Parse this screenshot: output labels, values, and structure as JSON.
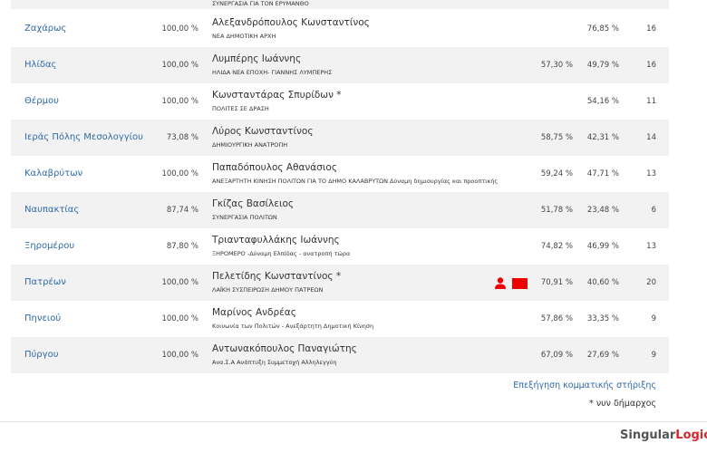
{
  "table": {
    "partial_row_party": "ΣΥΝΕΡΓΑΣΙΑ ΓΙΑ ΤΟΝ ΕΡΥΜΑΝΘΟ",
    "rows": [
      {
        "municipality": "Ζαχάρως",
        "counted": "100,00 %",
        "candidate": "Αλεξανδρόπουλος Κωνσταντίνος",
        "party": "ΝΕΑ ΔΗΜΟΤΙΚΗ ΑΡΧΗ",
        "second": "76,85 %",
        "seats": "16"
      },
      {
        "municipality": "Ηλίδας",
        "counted": "100,00 %",
        "candidate": "Λυμπέρης Ιωάννης",
        "party": "ΗΛΙΔΑ ΝΕΑ ΕΠΟΧΗ- ΓΙΑΝΝΗΣ ΛΥΜΠΕΡΗΣ",
        "first": "57,30 %",
        "second": "49,79 %",
        "seats": "16"
      },
      {
        "municipality": "Θέρμου",
        "counted": "100,00 %",
        "candidate": "Κωνσταντάρας Σπυρίδων *",
        "party": "ΠΟΛΙΤΕΣ ΣΕ ΔΡΑΣΗ",
        "second": "54,16 %",
        "seats": "11"
      },
      {
        "municipality": "Ιεράς Πόλης Μεσολογγίου",
        "counted": "73,08 %",
        "candidate": "Λύρος Κωνσταντίνος",
        "party": "ΔΗΜΙΟΥΡΓΙΚΗ ΑΝΑΤΡΟΠΗ",
        "first": "58,75 %",
        "second": "42,31 %",
        "seats": "14"
      },
      {
        "municipality": "Καλαβρύτων",
        "counted": "100,00 %",
        "candidate": "Παπαδόπουλος Αθανάσιος",
        "party": "ΑΝΕΞΑΡΤΗΤΗ ΚΙΝΗΣΗ ΠΟΛΙΤΩΝ ΓΙΑ ΤΟ ΔΗΜΟ ΚΑΛΑΒΡΥΤΩΝ Δύναμη δημιουργίας και προοπτικής",
        "first": "59,24 %",
        "second": "47,71 %",
        "seats": "13"
      },
      {
        "municipality": "Ναυπακτίας",
        "counted": "87,74 %",
        "candidate": "Γκίζας Βασίλειος",
        "party": "ΣΥΝΕΡΓΑΣΙΑ ΠΟΛΙΤΩΝ",
        "first": "51,78 %",
        "second": "23,48 %",
        "seats": "6"
      },
      {
        "municipality": "Ξηρομέρου",
        "counted": "87,80 %",
        "candidate": "Τριανταφυλλάκης Ιωάννης",
        "party": "ΞΗΡΟΜΕΡΟ -Δύναμη Ελπίδας - ανατροπή τώρα",
        "first": "74,82 %",
        "second": "46,99 %",
        "seats": "13"
      },
      {
        "municipality": "Πατρέων",
        "counted": "100,00 %",
        "candidate": "Πελετίδης Κωνσταντίνος *",
        "party": "ΛΑΪΚΗ ΣΥΣΠΕΙΡΩΣΗ ΔΗΜΟΥ ΠΑΤΡΕΩΝ",
        "first": "70,91 %",
        "second": "40,60 %",
        "seats": "20",
        "icons": true
      },
      {
        "municipality": "Πηνειού",
        "counted": "100,00 %",
        "candidate": "Μαρίνος Ανδρέας",
        "party": "Κοινωνία των Πολιτών - Ανεξάρτητη Δημοτική Κίνηση",
        "first": "57,86 %",
        "second": "33,35 %",
        "seats": "9"
      },
      {
        "municipality": "Πύργου",
        "counted": "100,00 %",
        "candidate": "Αντωνακόπουλος Παναγιώτης",
        "party": "Ανα.Σ.Α Ανάπτυξη Συμμετοχή Αλληλεγγύη",
        "first": "67,09 %",
        "second": "27,69 %",
        "seats": "9"
      }
    ]
  },
  "footer": {
    "link": "Επεξήγηση κομματικής στήριξης",
    "note": "* νυν δήμαρχος"
  },
  "logo": {
    "part1": "Singular",
    "part2": "Logic"
  }
}
